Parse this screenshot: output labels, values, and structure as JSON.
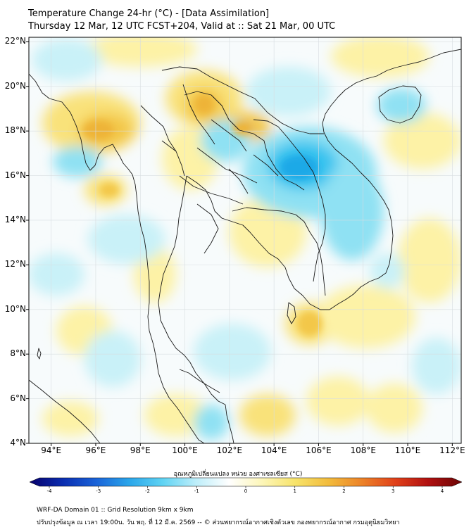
{
  "title": {
    "line1": "Temperature Change 24-hr (°C) - [Data Assimilation]",
    "line2": "Thursday 12 Mar, 12 UTC FCST+204, Valid at :: Sat 21 Mar, 00 UTC"
  },
  "map": {
    "lat_labels": [
      "22°N",
      "20°N",
      "18°N",
      "16°N",
      "14°N",
      "12°N",
      "10°N",
      "8°N",
      "6°N",
      "4°N"
    ],
    "lon_labels": [
      "94°E",
      "96°E",
      "98°E",
      "100°E",
      "102°E",
      "104°E",
      "106°E",
      "108°E",
      "110°E",
      "112°E"
    ],
    "lat_range": [
      4,
      22.2
    ],
    "lon_range": [
      93,
      112.4
    ],
    "colors": {
      "background": "#f7fbfc",
      "warm_light": "#fdf2a6",
      "warm": "#f9e27a",
      "warm_strong": "#f3c74a",
      "warm_orange": "#eeb438",
      "cool_light": "#c9f1f8",
      "cool": "#8fe1f3",
      "cool_strong": "#38c3ef",
      "cool_deep": "#1aa9e7",
      "border": "#1a1a1a",
      "grid": "#d7dde0"
    }
  },
  "colorbar": {
    "title": "อุณหภูมิเปลี่ยนแปลง หน่วย องศาเซลเซียส (°C)",
    "ticks": [
      "-4",
      "-3",
      "-2",
      "-1",
      "0",
      "1",
      "2",
      "3",
      "4"
    ],
    "range": [
      -4,
      4
    ],
    "colors": [
      "#08006b",
      "#0a2db0",
      "#1a63d8",
      "#2aa6ea",
      "#5fd3f3",
      "#bdeefa",
      "#ffffff",
      "#fdf6b8",
      "#f7e36a",
      "#f2bb3c",
      "#ec8228",
      "#e0401a",
      "#b01010",
      "#6b0505"
    ]
  },
  "footer": {
    "line1": "WRF-DA Domain 01 :: Grid Resolution 9km x 9km",
    "line2": "ปรับปรุงข้อมูล ณ เวลา 19:00น. วัน พฤ. ที่ 12 มี.ค. 2569 -- © ส่วนพยากรณ์อากาศเชิงตัวเลข กองพยากรณ์อากาศ กรมอุตุนิยมวิทยา"
  }
}
